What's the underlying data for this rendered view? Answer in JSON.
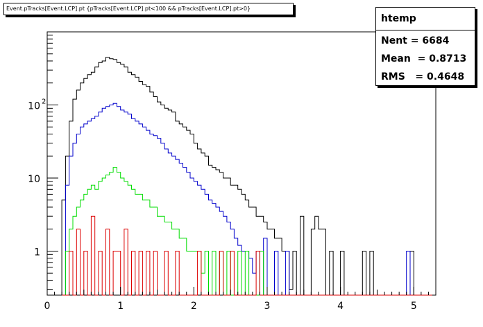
{
  "title": "Event.pTracks[Event.LCP].pt {pTracks[Event.LCP].pt<100 && pTracks[Event.LCP].pt>0}",
  "stats": {
    "name": "htemp",
    "entries_label": "Nent",
    "entries_value": "6684",
    "mean_label": "Mean",
    "mean_value": "0.8713",
    "rms_label": "RMS",
    "rms_value": "0.4648"
  },
  "colors": {
    "black": "#000000",
    "blue": "#0000cc",
    "green": "#00dd00",
    "red": "#dd0000"
  },
  "chart_data": {
    "type": "line",
    "style": "step-histogram",
    "yscale": "log",
    "xlim": [
      0,
      5.3
    ],
    "ylim": [
      0.25,
      1000
    ],
    "bin_width": 0.05,
    "x_start": 0.2,
    "xticks": [
      "0",
      "1",
      "2",
      "3",
      "4",
      "5"
    ],
    "yticks": [
      {
        "value": 1,
        "label": "1"
      },
      {
        "value": 10,
        "label": "10"
      },
      {
        "value": 100,
        "label": "10",
        "sup": "2"
      }
    ],
    "series": [
      {
        "color": "#000000",
        "values": [
          5,
          20,
          60,
          120,
          160,
          200,
          230,
          260,
          280,
          330,
          380,
          400,
          450,
          430,
          420,
          380,
          360,
          330,
          280,
          260,
          240,
          210,
          190,
          180,
          150,
          130,
          110,
          100,
          90,
          85,
          80,
          60,
          55,
          50,
          45,
          40,
          30,
          25,
          22,
          20,
          15,
          14,
          13,
          12,
          10,
          10,
          8,
          8,
          7,
          6,
          5,
          4,
          4,
          3,
          3,
          2.5,
          2,
          2,
          1.5,
          1.5,
          1,
          1,
          0.3,
          1,
          0,
          3,
          0,
          0,
          2,
          3,
          2,
          2,
          0,
          1,
          0,
          0,
          1,
          0,
          0,
          0,
          0,
          0,
          1,
          0,
          1,
          0,
          0,
          0,
          0,
          0,
          0,
          0,
          0,
          0,
          0,
          1,
          0,
          0,
          0,
          0
        ]
      },
      {
        "color": "#0000cc",
        "values": [
          0,
          8,
          20,
          30,
          40,
          50,
          55,
          60,
          65,
          70,
          80,
          90,
          95,
          100,
          105,
          95,
          85,
          80,
          75,
          65,
          60,
          55,
          50,
          45,
          40,
          38,
          35,
          30,
          25,
          22,
          20,
          18,
          16,
          14,
          12,
          10,
          9,
          8,
          7,
          6,
          5,
          4.5,
          4,
          3.5,
          3,
          2.5,
          2,
          1.5,
          1.2,
          1,
          1,
          0.8,
          0.5,
          1,
          0,
          1.5,
          0,
          0,
          1,
          0,
          0,
          1,
          0,
          0,
          0,
          0,
          0,
          0,
          0,
          0,
          0,
          0,
          0,
          0,
          0,
          0,
          0,
          0,
          0,
          0,
          0,
          0,
          0,
          0,
          0,
          0,
          0,
          0,
          0,
          0,
          0,
          0,
          0,
          0,
          1,
          0,
          0,
          0,
          0
        ]
      },
      {
        "color": "#00dd00",
        "values": [
          0,
          1,
          2,
          3,
          4,
          5,
          6,
          7,
          8,
          7,
          9,
          10,
          11,
          12,
          14,
          12,
          10,
          9,
          8,
          7,
          6,
          6,
          5,
          5,
          4,
          4,
          3,
          3,
          2.5,
          2.5,
          2,
          2,
          1.5,
          1.5,
          1,
          1,
          1,
          1,
          0.5,
          1,
          0,
          1,
          0,
          1,
          0,
          1,
          0,
          0,
          1,
          0,
          1,
          0,
          0,
          0,
          1,
          0,
          0,
          0,
          0,
          0,
          0,
          0,
          0,
          0,
          0,
          0,
          0,
          0,
          0,
          0,
          0,
          0,
          0,
          0,
          0,
          0,
          0,
          0,
          0,
          0,
          0,
          0,
          0,
          0,
          0,
          0,
          0,
          0,
          0,
          0,
          0,
          0,
          0,
          0,
          0,
          0,
          0,
          0,
          0,
          0
        ]
      },
      {
        "color": "#dd0000",
        "values": [
          0,
          0,
          1,
          0,
          2,
          0,
          1,
          0,
          3,
          0,
          1,
          0,
          2,
          0,
          1,
          1,
          0,
          2,
          0,
          1,
          0,
          1,
          0,
          1,
          0,
          1,
          0,
          0,
          1,
          0,
          0,
          1,
          0,
          0,
          0,
          0,
          0,
          1,
          0,
          0,
          0,
          0,
          0,
          1,
          0,
          0,
          1,
          0,
          0,
          0,
          0,
          0,
          0,
          1,
          0,
          0,
          0,
          0,
          0,
          0,
          0,
          0,
          0,
          0,
          0,
          0,
          0,
          0,
          0,
          0,
          0,
          0,
          0,
          0,
          0,
          0,
          0,
          0,
          0,
          0,
          0,
          0,
          0,
          0,
          0,
          0,
          0,
          0,
          0,
          0,
          0,
          0,
          0,
          0,
          0,
          0,
          0,
          0,
          0,
          0,
          0
        ]
      }
    ]
  }
}
